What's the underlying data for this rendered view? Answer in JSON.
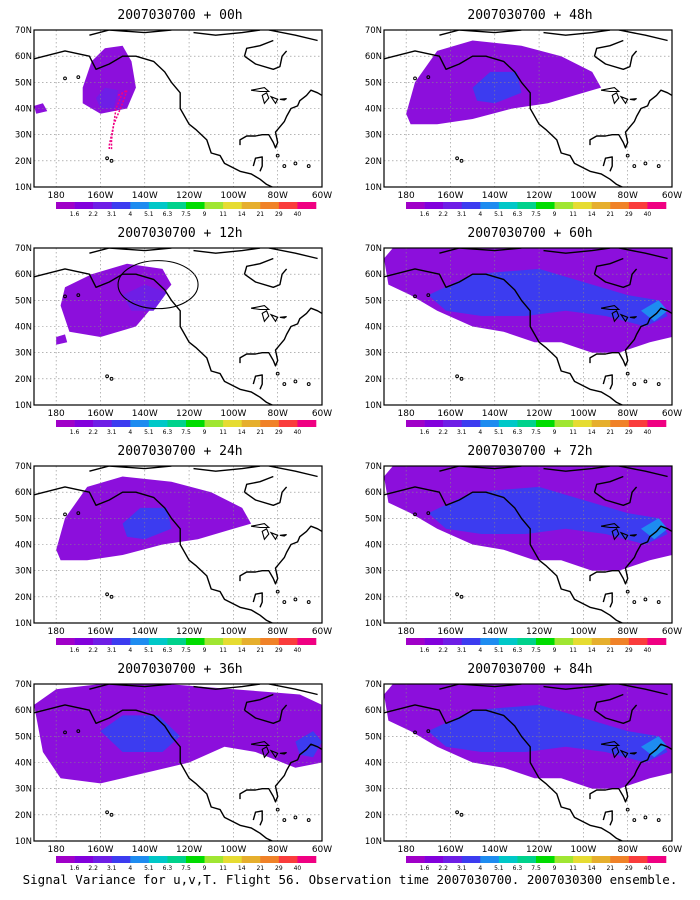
{
  "lat_labels": [
    "70N",
    "60N",
    "50N",
    "40N",
    "30N",
    "20N",
    "10N"
  ],
  "lon_labels": [
    "180",
    "160W",
    "140W",
    "120W",
    "100W",
    "80W",
    "60W"
  ],
  "colorbar": {
    "labels": [
      "1.6",
      "2.2",
      "3.1",
      "4",
      "5.1",
      "6.3",
      "7.5",
      "9",
      "11",
      "14",
      "21",
      "29",
      "40"
    ],
    "colors": [
      "#a000c8",
      "#8200dc",
      "#6e1ee6",
      "#3c3cf0",
      "#1e8cf0",
      "#00c8c8",
      "#00d28c",
      "#00dc00",
      "#a0e632",
      "#e6dc32",
      "#e6af2d",
      "#f08228",
      "#fa3c3c",
      "#f00082"
    ]
  },
  "panels": [
    {
      "title": "2007030700  + 00h",
      "coverage": "small"
    },
    {
      "title": "2007030700  + 48h",
      "coverage": "medium"
    },
    {
      "title": "2007030700  + 12h",
      "coverage": "small-medium"
    },
    {
      "title": "2007030700  + 60h",
      "coverage": "large"
    },
    {
      "title": "2007030700  + 24h",
      "coverage": "medium"
    },
    {
      "title": "2007030700  + 72h",
      "coverage": "large"
    },
    {
      "title": "2007030700  + 36h",
      "coverage": "medium-large"
    },
    {
      "title": "2007030700  + 84h",
      "coverage": "large"
    }
  ],
  "caption": "Signal Variance for u,v,T. Flight 56. Observation time 2007030700. 2007030300 ensemble."
}
